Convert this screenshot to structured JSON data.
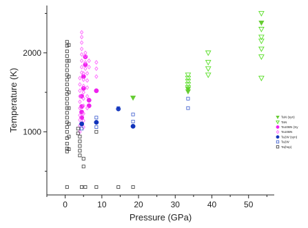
{
  "chart_data": {
    "type": "scatter",
    "title": "",
    "xlabel": "Pressure (GPa)",
    "ylabel": "Temperature (K)",
    "xlim": [
      -5,
      57
    ],
    "ylim": [
      200,
      2600
    ],
    "x_ticks": [
      0,
      10,
      20,
      30,
      40,
      50
    ],
    "x_tick_labels": [
      "0",
      "10",
      "20",
      "30",
      "40",
      "50"
    ],
    "y_ticks": [
      1000,
      2000
    ],
    "y_tick_labels": [
      "1000",
      "2000"
    ],
    "grid": false,
    "legend_position": "right",
    "series": [
      {
        "name": "TaN (syn)",
        "marker": "triangle-down-filled",
        "color": "#66cc33",
        "points": [
          [
            18.5,
            1430
          ],
          [
            33.5,
            1510
          ],
          [
            33.5,
            1540
          ],
          [
            53.5,
            2380
          ]
        ]
      },
      {
        "name": "TaN",
        "marker": "triangle-down-open",
        "color": "#55dd22",
        "points": [
          [
            33.5,
            1560
          ],
          [
            33.5,
            1600
          ],
          [
            33.5,
            1640
          ],
          [
            33.5,
            1680
          ],
          [
            33.5,
            1720
          ],
          [
            39,
            1720
          ],
          [
            39,
            1800
          ],
          [
            39,
            1880
          ],
          [
            39,
            2000
          ],
          [
            53.5,
            1680
          ],
          [
            53.5,
            1950
          ],
          [
            53.5,
            2050
          ],
          [
            53.5,
            2150
          ],
          [
            53.5,
            2200
          ],
          [
            53.5,
            2300
          ],
          [
            53.5,
            2500
          ]
        ]
      },
      {
        "name": "Ta10BN (Sy",
        "marker": "circle-filled",
        "color": "#ee22ee",
        "points": [
          [
            4.5,
            1180
          ],
          [
            4.5,
            1250
          ],
          [
            4.5,
            1320
          ],
          [
            4.5,
            1450
          ],
          [
            5,
            1550
          ],
          [
            5,
            1700
          ],
          [
            5.5,
            1850
          ],
          [
            5.5,
            1950
          ],
          [
            6.5,
            1330
          ],
          [
            6.5,
            1400
          ],
          [
            8.5,
            1520
          ]
        ]
      },
      {
        "name": "Ta10BN",
        "marker": "diamond-open",
        "color": "#ff66ff",
        "points": [
          [
            4,
            1000
          ],
          [
            4,
            1080
          ],
          [
            4,
            1150
          ],
          [
            4,
            1210
          ],
          [
            4,
            1300
          ],
          [
            4,
            1380
          ],
          [
            4,
            1450
          ],
          [
            4,
            1520
          ],
          [
            4,
            1600
          ],
          [
            4,
            1680
          ],
          [
            4.5,
            1750
          ],
          [
            4.5,
            1820
          ],
          [
            4.5,
            1900
          ],
          [
            4.5,
            1980
          ],
          [
            4.5,
            2050
          ],
          [
            4.5,
            2130
          ],
          [
            4.5,
            2200
          ],
          [
            4.5,
            2260
          ],
          [
            5,
            1060
          ],
          [
            5,
            1140
          ],
          [
            5,
            1230
          ],
          [
            5,
            1330
          ],
          [
            5,
            1420
          ],
          [
            5,
            1500
          ],
          [
            5,
            1580
          ],
          [
            5,
            1660
          ],
          [
            5,
            1740
          ],
          [
            5.5,
            1800
          ],
          [
            5.5,
            1880
          ],
          [
            5.5,
            1960
          ],
          [
            5.5,
            2000
          ],
          [
            6,
            1300
          ],
          [
            6,
            1450
          ],
          [
            6,
            1560
          ],
          [
            6,
            1650
          ],
          [
            6,
            1740
          ],
          [
            6.5,
            1820
          ],
          [
            6.5,
            1900
          ],
          [
            8.5,
            1700
          ],
          [
            8.5,
            1800
          ],
          [
            8.5,
            1880
          ]
        ]
      },
      {
        "name": "Ta2W (syn)",
        "marker": "circle-filled",
        "color": "#1133bb",
        "points": [
          [
            4.5,
            1100
          ],
          [
            8.5,
            1120
          ],
          [
            14.5,
            1290
          ],
          [
            18.5,
            1070
          ]
        ]
      },
      {
        "name": "Ta2W",
        "marker": "square-open",
        "color": "#3355cc",
        "points": [
          [
            4.5,
            1040
          ],
          [
            8.5,
            1060
          ],
          [
            8.5,
            1180
          ],
          [
            14.5,
            1300
          ],
          [
            18.5,
            1130
          ],
          [
            18.5,
            1220
          ],
          [
            33.5,
            1300
          ],
          [
            33.5,
            1420
          ]
        ]
      },
      {
        "name": "Ta(hsp)",
        "marker": "square-open",
        "color": "#333333",
        "points": [
          [
            0.5,
            750
          ],
          [
            0.5,
            790
          ],
          [
            0.5,
            850
          ],
          [
            0.5,
            920
          ],
          [
            0.5,
            1000
          ],
          [
            0.5,
            1060
          ],
          [
            0.5,
            1120
          ],
          [
            0.5,
            1180
          ],
          [
            0.5,
            1240
          ],
          [
            0.5,
            1300
          ],
          [
            0.5,
            1360
          ],
          [
            0.5,
            1420
          ],
          [
            0.5,
            1480
          ],
          [
            0.5,
            1540
          ],
          [
            0.5,
            1600
          ],
          [
            0.5,
            1660
          ],
          [
            0.5,
            1720
          ],
          [
            0.5,
            1780
          ],
          [
            0.5,
            1840
          ],
          [
            0.5,
            1900
          ],
          [
            0.5,
            1960
          ],
          [
            0.5,
            2020
          ],
          [
            0.5,
            2090
          ],
          [
            0.5,
            2140
          ],
          [
            1,
            780
          ],
          [
            1,
            940
          ],
          [
            1,
            1100
          ],
          [
            1,
            1300
          ],
          [
            1,
            1500
          ],
          [
            1,
            1700
          ],
          [
            1,
            1900
          ],
          [
            1,
            2100
          ],
          [
            3.5,
            980
          ],
          [
            3.5,
            1040
          ],
          [
            4,
            700
          ],
          [
            4,
            760
          ],
          [
            4,
            820
          ],
          [
            4,
            880
          ],
          [
            4,
            940
          ],
          [
            5,
            560
          ],
          [
            5,
            660
          ],
          [
            8.5,
            1000
          ],
          [
            0.5,
            300
          ],
          [
            4.5,
            300
          ],
          [
            5.5,
            300
          ],
          [
            8.5,
            300
          ],
          [
            14.5,
            300
          ],
          [
            18.5,
            300
          ]
        ]
      }
    ]
  }
}
